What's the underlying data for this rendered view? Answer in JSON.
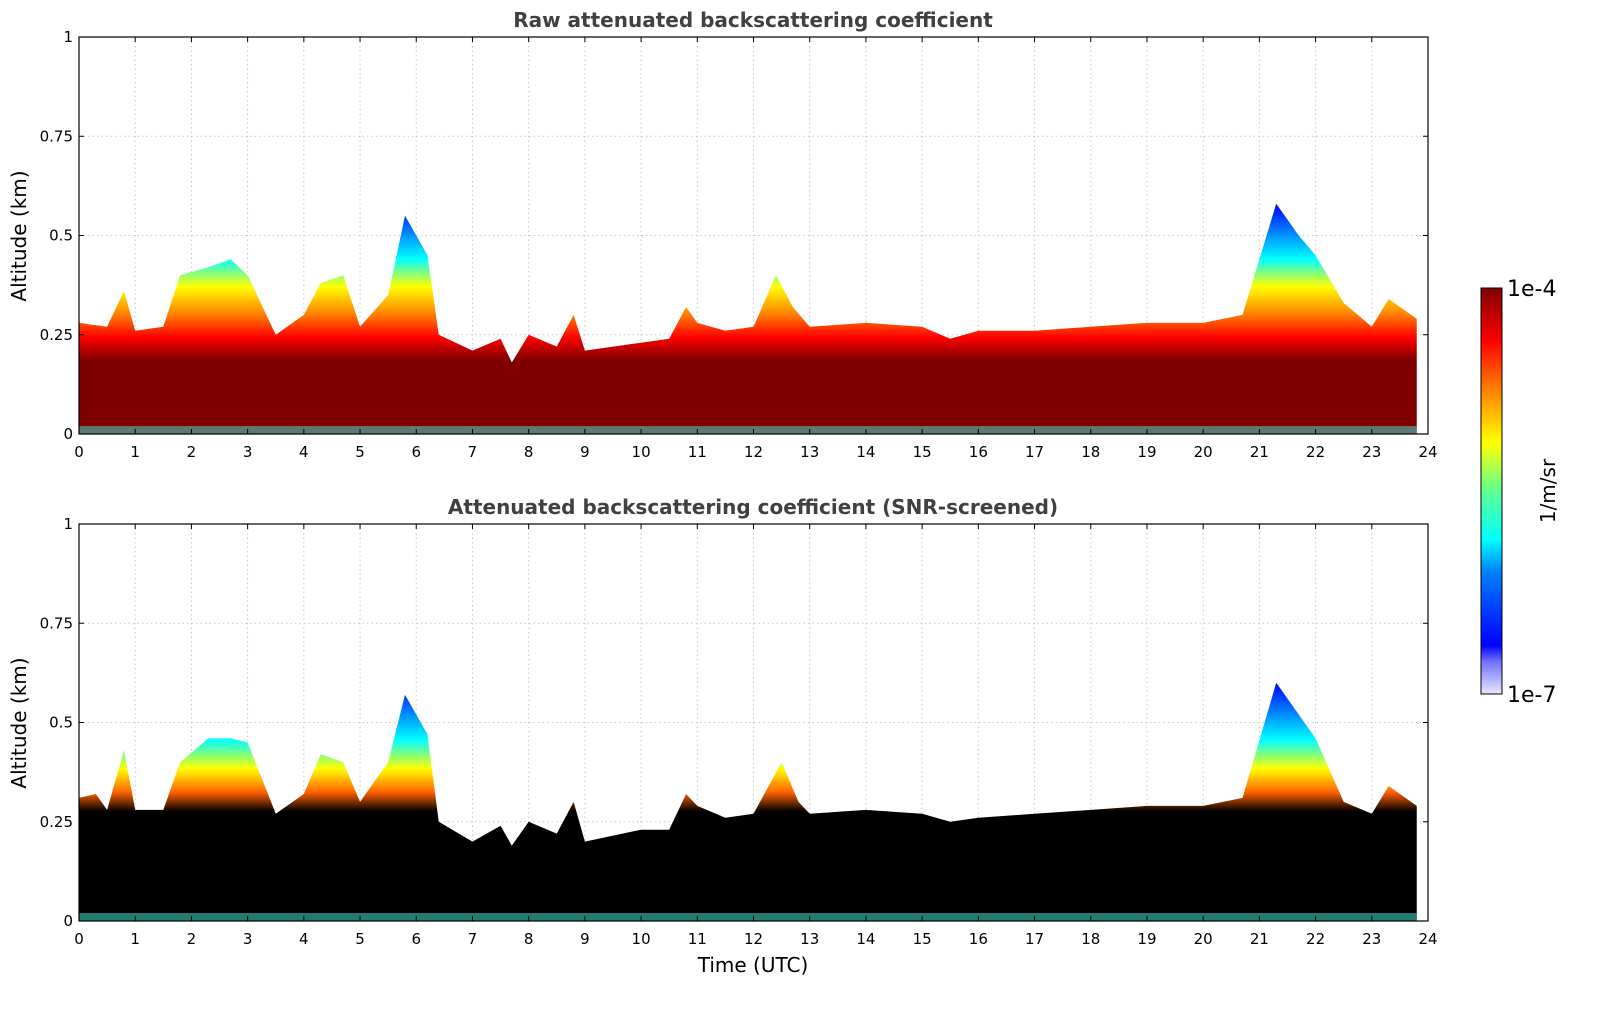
{
  "chart_data": [
    {
      "type": "heatmap",
      "title": "Raw attenuated backscattering coefficient",
      "xlabel": "",
      "ylabel": "Altitude (km)",
      "xlim": [
        0,
        24
      ],
      "ylim": [
        0,
        1
      ],
      "xticks": [
        "0",
        "1",
        "2",
        "3",
        "4",
        "5",
        "6",
        "7",
        "8",
        "9",
        "10",
        "11",
        "12",
        "13",
        "14",
        "15",
        "16",
        "17",
        "18",
        "19",
        "20",
        "21",
        "22",
        "23",
        "24"
      ],
      "yticks": [
        "0",
        "0.25",
        "0.5",
        "0.75",
        "1"
      ],
      "grid": true,
      "data_end_hour": 23.8,
      "layer_top_km": [
        [
          0,
          0.28
        ],
        [
          0.5,
          0.27
        ],
        [
          0.8,
          0.36
        ],
        [
          1,
          0.26
        ],
        [
          1.5,
          0.27
        ],
        [
          1.8,
          0.4
        ],
        [
          2.3,
          0.42
        ],
        [
          2.7,
          0.44
        ],
        [
          3,
          0.4
        ],
        [
          3.5,
          0.25
        ],
        [
          4,
          0.3
        ],
        [
          4.3,
          0.38
        ],
        [
          4.7,
          0.4
        ],
        [
          5,
          0.27
        ],
        [
          5.5,
          0.35
        ],
        [
          5.8,
          0.55
        ],
        [
          6.2,
          0.45
        ],
        [
          6.4,
          0.25
        ],
        [
          7,
          0.21
        ],
        [
          7.5,
          0.24
        ],
        [
          7.7,
          0.18
        ],
        [
          8,
          0.25
        ],
        [
          8.5,
          0.22
        ],
        [
          8.8,
          0.3
        ],
        [
          9,
          0.21
        ],
        [
          10,
          0.23
        ],
        [
          10.5,
          0.24
        ],
        [
          10.8,
          0.32
        ],
        [
          11,
          0.28
        ],
        [
          11.5,
          0.26
        ],
        [
          12,
          0.27
        ],
        [
          12.4,
          0.4
        ],
        [
          12.7,
          0.32
        ],
        [
          13,
          0.27
        ],
        [
          14,
          0.28
        ],
        [
          15,
          0.27
        ],
        [
          15.5,
          0.24
        ],
        [
          16,
          0.26
        ],
        [
          17,
          0.26
        ],
        [
          18,
          0.27
        ],
        [
          19,
          0.28
        ],
        [
          20,
          0.28
        ],
        [
          20.7,
          0.3
        ],
        [
          21.3,
          0.58
        ],
        [
          21.7,
          0.5
        ],
        [
          22,
          0.45
        ],
        [
          22.5,
          0.33
        ],
        [
          23,
          0.27
        ],
        [
          23.3,
          0.34
        ],
        [
          23.8,
          0.29
        ]
      ]
    },
    {
      "type": "heatmap",
      "title": "Attenuated backscattering coefficient (SNR-screened)",
      "xlabel": "Time (UTC)",
      "ylabel": "Altitude (km)",
      "xlim": [
        0,
        24
      ],
      "ylim": [
        0,
        1
      ],
      "xticks": [
        "0",
        "1",
        "2",
        "3",
        "4",
        "5",
        "6",
        "7",
        "8",
        "9",
        "10",
        "11",
        "12",
        "13",
        "14",
        "15",
        "16",
        "17",
        "18",
        "19",
        "20",
        "21",
        "22",
        "23",
        "24"
      ],
      "yticks": [
        "0",
        "0.25",
        "0.5",
        "0.75",
        "1"
      ],
      "grid": true,
      "data_end_hour": 23.8,
      "layer_top_km": [
        [
          0,
          0.31
        ],
        [
          0.3,
          0.32
        ],
        [
          0.5,
          0.28
        ],
        [
          0.8,
          0.43
        ],
        [
          1,
          0.28
        ],
        [
          1.5,
          0.28
        ],
        [
          1.8,
          0.4
        ],
        [
          2.3,
          0.46
        ],
        [
          2.7,
          0.46
        ],
        [
          3,
          0.45
        ],
        [
          3.5,
          0.27
        ],
        [
          4,
          0.32
        ],
        [
          4.3,
          0.42
        ],
        [
          4.7,
          0.4
        ],
        [
          5,
          0.3
        ],
        [
          5.5,
          0.4
        ],
        [
          5.8,
          0.57
        ],
        [
          6.2,
          0.47
        ],
        [
          6.4,
          0.25
        ],
        [
          7,
          0.2
        ],
        [
          7.5,
          0.24
        ],
        [
          7.7,
          0.19
        ],
        [
          8,
          0.25
        ],
        [
          8.5,
          0.22
        ],
        [
          8.8,
          0.3
        ],
        [
          9,
          0.2
        ],
        [
          10,
          0.23
        ],
        [
          10.5,
          0.23
        ],
        [
          10.8,
          0.32
        ],
        [
          11,
          0.29
        ],
        [
          11.5,
          0.26
        ],
        [
          12,
          0.27
        ],
        [
          12.5,
          0.4
        ],
        [
          12.8,
          0.3
        ],
        [
          13,
          0.27
        ],
        [
          14,
          0.28
        ],
        [
          15,
          0.27
        ],
        [
          15.5,
          0.25
        ],
        [
          16,
          0.26
        ],
        [
          17,
          0.27
        ],
        [
          18,
          0.28
        ],
        [
          19,
          0.29
        ],
        [
          20,
          0.29
        ],
        [
          20.7,
          0.31
        ],
        [
          21.3,
          0.6
        ],
        [
          21.7,
          0.52
        ],
        [
          22,
          0.46
        ],
        [
          22.5,
          0.3
        ],
        [
          23,
          0.27
        ],
        [
          23.3,
          0.34
        ],
        [
          23.8,
          0.29
        ]
      ]
    }
  ],
  "colorbar": {
    "label": "1/m/sr",
    "max_label": "1e-4",
    "min_label": "1e-7",
    "colormap": "jet",
    "min": 1e-07,
    "max": 0.0001,
    "scale": "log"
  }
}
